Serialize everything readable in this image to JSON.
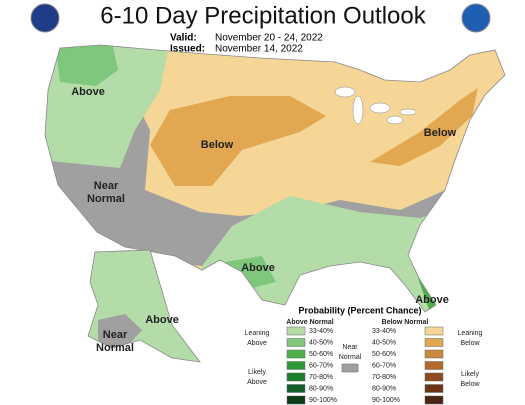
{
  "header": {
    "title": "6-10 Day Precipitation Outlook",
    "valid_label": "Valid:",
    "valid_dates": "November 20 - 24, 2022",
    "issued_label": "Issued:",
    "issued_date": "November 14, 2022"
  },
  "map_labels": [
    {
      "lines": [
        "Above"
      ]
    },
    {
      "lines": [
        "Near",
        "Normal"
      ]
    },
    {
      "lines": [
        "Below"
      ]
    },
    {
      "lines": [
        "Below"
      ]
    },
    {
      "lines": [
        "Above"
      ]
    },
    {
      "lines": [
        "Above"
      ]
    },
    {
      "lines": [
        "Near",
        "Normal"
      ]
    },
    {
      "lines": [
        "Above"
      ]
    }
  ],
  "legend": {
    "title": "Probability (Percent Chance)",
    "above_header": "Above Normal",
    "below_header": "Below Normal",
    "ranges": [
      "33-40%",
      "40-50%",
      "50-60%",
      "60-70%",
      "70-80%",
      "80-90%",
      "90-100%"
    ],
    "above_colors": [
      "#b3dca8",
      "#80c77e",
      "#4daf4a",
      "#2f9a3a",
      "#1d7f2b",
      "#13602a",
      "#0b3d1a"
    ],
    "below_colors": [
      "#f5d697",
      "#e1a851",
      "#c98a3e",
      "#b3682b",
      "#8f4a1f",
      "#6b3415",
      "#4b2410"
    ],
    "leaning_above": [
      "Leaning",
      "Above"
    ],
    "likely_above": [
      "Likely",
      "Above"
    ],
    "near_normal": [
      "Near",
      "Normal"
    ],
    "near_color": "#a0a0a0",
    "leaning_below": [
      "Leaning",
      "Below"
    ],
    "likely_below": [
      "Likely",
      "Below"
    ]
  }
}
